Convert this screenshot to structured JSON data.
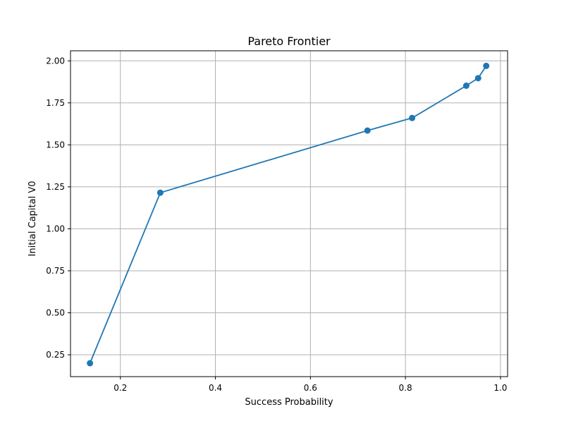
{
  "chart_data": {
    "type": "line",
    "title": "Pareto Frontier",
    "xlabel": "Success Probability",
    "ylabel": "Initial Capital V0",
    "xlim": [
      0.095,
      1.015
    ],
    "ylim": [
      0.12,
      2.06
    ],
    "xticks": [
      0.2,
      0.4,
      0.6,
      0.8,
      1.0
    ],
    "xtick_labels": [
      "0.2",
      "0.4",
      "0.6",
      "0.8",
      "1.0"
    ],
    "yticks": [
      0.25,
      0.5,
      0.75,
      1.0,
      1.25,
      1.5,
      1.75,
      2.0
    ],
    "ytick_labels": [
      "0.25",
      "0.50",
      "0.75",
      "1.00",
      "1.25",
      "1.50",
      "1.75",
      "2.00"
    ],
    "grid": true,
    "legend": false,
    "series": [
      {
        "color": "#1f77b4",
        "marker": "circle",
        "x": [
          0.136,
          0.284,
          0.72,
          0.814,
          0.928,
          0.953,
          0.97
        ],
        "y": [
          0.2,
          1.215,
          1.585,
          1.66,
          1.852,
          1.897,
          1.97
        ]
      }
    ]
  }
}
